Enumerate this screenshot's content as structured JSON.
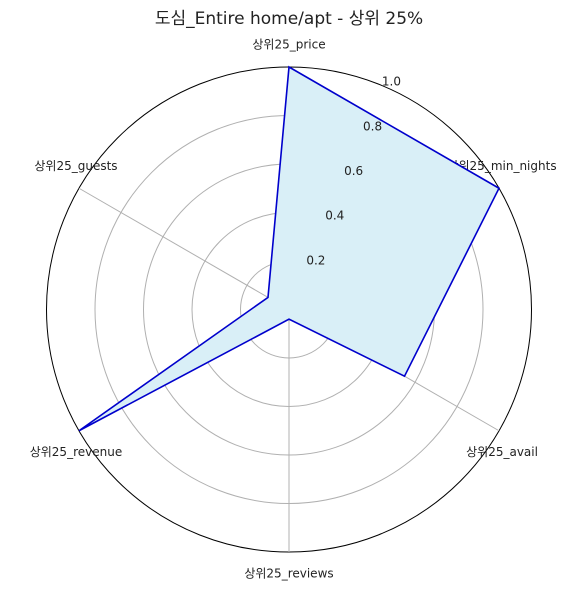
{
  "chart_data": {
    "type": "radar",
    "title": "도심_Entire home/apt - 상위 25%",
    "categories": [
      "상위25_price",
      "상위25_min_nights",
      "상위25_avail",
      "상위25_reviews",
      "상위25_revenue",
      "상위25_guests"
    ],
    "values": [
      1.0,
      1.0,
      0.55,
      0.04,
      1.0,
      0.1
    ],
    "rlim": [
      0,
      1
    ],
    "rticks": [
      0.2,
      0.4,
      0.6,
      0.8,
      {
        "value": 1,
        "label": "1.0"
      }
    ],
    "grid": true,
    "color": "#0000cc",
    "fill": "#d9eff7"
  }
}
